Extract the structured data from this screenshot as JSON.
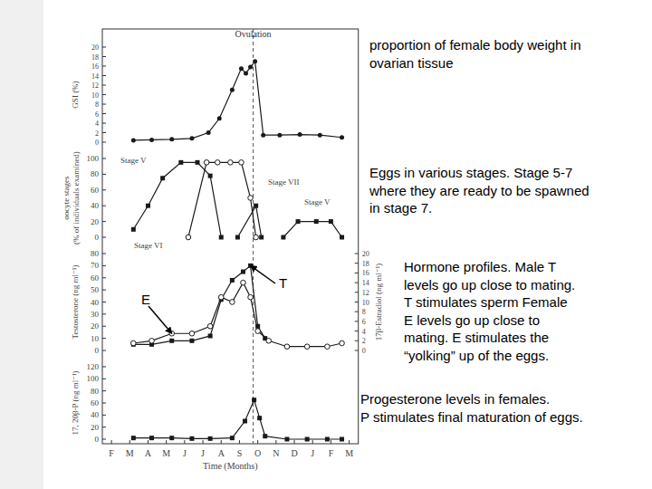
{
  "chart_data": [
    {
      "type": "line",
      "ylabel": "GSI (%)",
      "ylim": [
        0,
        20
      ],
      "yticks": [
        0,
        2,
        4,
        6,
        8,
        10,
        12,
        14,
        16,
        18,
        20
      ],
      "color": "#1a1a1a",
      "series": [
        {
          "marker": "circle",
          "x": [
            1.2,
            2.2,
            3.3,
            4.4,
            5.3,
            5.9,
            6.6,
            7.1,
            7.35,
            7.6,
            7.85,
            8.3,
            9.2,
            10.3,
            11.4,
            12.6
          ],
          "values": [
            0.4,
            0.5,
            0.6,
            0.8,
            2.0,
            5.0,
            11.0,
            15.5,
            14.5,
            15.8,
            17.0,
            1.5,
            1.5,
            1.6,
            1.5,
            1.0
          ]
        }
      ],
      "annotations": [
        {
          "text": "Ovulation",
          "x": 7.75
        }
      ],
      "caption": [
        "proportion of female body weight in",
        "ovarian tissue"
      ]
    },
    {
      "type": "line",
      "ylabel": [
        "oocyte stages",
        "(% of individuals examined)"
      ],
      "ylim": [
        0,
        100
      ],
      "yticks": [
        0,
        20,
        40,
        60,
        80,
        100
      ],
      "color": "#1a1a1a",
      "series": [
        {
          "name": "Stage V",
          "marker": "square",
          "x": [
            1.2,
            2.0,
            2.8,
            3.8,
            4.7,
            5.4,
            6.0
          ],
          "values": [
            10,
            40,
            75,
            95,
            95,
            78,
            0
          ]
        },
        {
          "name": "Stage VI",
          "marker": "open-circle",
          "x": [
            4.2,
            5.2,
            5.8,
            6.5,
            7.1,
            7.6,
            7.9
          ],
          "values": [
            0,
            95,
            95,
            95,
            95,
            50,
            0
          ]
        },
        {
          "name": "Stage VII",
          "marker": "square",
          "x": [
            6.9,
            7.9,
            8.2
          ],
          "values": [
            0,
            40,
            0
          ]
        },
        {
          "name": "Stage V",
          "marker": "square",
          "x": [
            9.4,
            10.2,
            11.2,
            12.0,
            12.6
          ],
          "values": [
            0,
            20,
            20,
            20,
            0
          ]
        }
      ],
      "caption": [
        "Eggs in various stages.  Stage 5-7",
        "where they are ready to be spawned",
        "in stage 7."
      ]
    },
    {
      "type": "line",
      "ylabel": "Testosterone (ng ml⁻¹)",
      "ylim": [
        0,
        80
      ],
      "yticks": [
        0,
        10,
        20,
        30,
        40,
        50,
        60,
        70,
        80
      ],
      "y2label": "17β-Estradiol (ng ml⁻¹)",
      "y2lim": [
        0,
        20
      ],
      "y2ticks": [
        0,
        2,
        4,
        6,
        8,
        10,
        12,
        14,
        16,
        18,
        20
      ],
      "color": "#1a1a1a",
      "series": [
        {
          "name": "T",
          "marker": "square",
          "x": [
            1.2,
            2.2,
            3.3,
            4.4,
            5.4,
            6.0,
            6.6,
            7.2,
            7.6,
            8.0,
            8.4
          ],
          "values": [
            5,
            5,
            8,
            8,
            12,
            42,
            58,
            65,
            70,
            20,
            10
          ]
        },
        {
          "name": "E",
          "axis": "y2",
          "marker": "open-circle",
          "x": [
            1.2,
            2.2,
            3.3,
            4.4,
            5.4,
            6.0,
            6.6,
            7.2,
            7.6,
            8.0,
            8.6,
            9.6,
            10.7,
            11.8,
            12.6
          ],
          "values": [
            1.5,
            2,
            3.5,
            3.5,
            5,
            11,
            10,
            14,
            11,
            4,
            2,
            0.8,
            0.8,
            0.8,
            1.5
          ]
        }
      ],
      "caption": [
        "Hormone profiles.  Male T",
        "levels go up close to mating.",
        "T stimulates sperm Female",
        "E levels go up close to",
        "mating. E stimulates the",
        "“yolking” up of the eggs."
      ]
    },
    {
      "type": "line",
      "ylabel": "17, 20β-P (ng ml⁻¹)",
      "ylim": [
        0,
        120
      ],
      "yticks": [
        0,
        20,
        40,
        60,
        80,
        100,
        120
      ],
      "color": "#1a1a1a",
      "xlabel": "Time (Months)",
      "xlim": [
        -0.5,
        13.5
      ],
      "xticks": [
        {
          "value": 0,
          "label": "F"
        },
        {
          "value": 1,
          "label": "M"
        },
        {
          "value": 2,
          "label": "A"
        },
        {
          "value": 3,
          "label": "M"
        },
        {
          "value": 4,
          "label": "J"
        },
        {
          "value": 5,
          "label": "J"
        },
        {
          "value": 6,
          "label": "A"
        },
        {
          "value": 7,
          "label": "S"
        },
        {
          "value": 8,
          "label": "O"
        },
        {
          "value": 9,
          "label": "N"
        },
        {
          "value": 10,
          "label": "D"
        },
        {
          "value": 11,
          "label": "J"
        },
        {
          "value": 12,
          "label": "F"
        },
        {
          "value": 13,
          "label": "M"
        }
      ],
      "series": [
        {
          "marker": "square",
          "x": [
            1.2,
            2.2,
            3.3,
            4.4,
            5.4,
            6.6,
            7.3,
            7.8,
            8.1,
            8.4,
            9.6,
            10.7,
            11.8,
            12.6
          ],
          "values": [
            2,
            2,
            2,
            1,
            1,
            2,
            30,
            65,
            35,
            5,
            0,
            0,
            0,
            0
          ]
        }
      ],
      "caption": [
        "Progesterone levels in females.",
        "P stimulates final maturation of eggs."
      ]
    }
  ]
}
